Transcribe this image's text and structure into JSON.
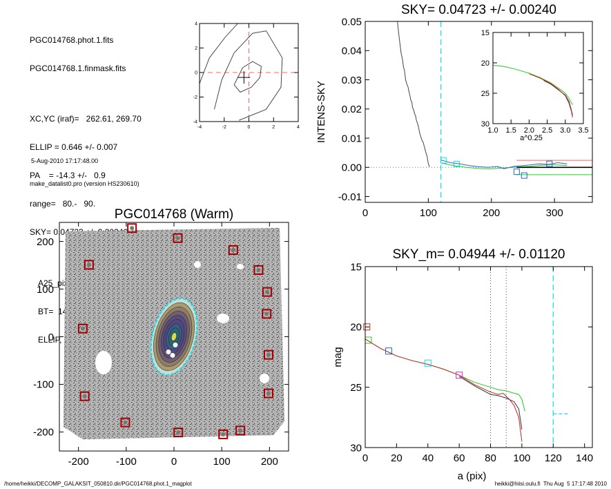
{
  "info": {
    "file1": "PGC014768.phot.1.fits",
    "file2": "PGC014768.1.finmask.fits",
    "xcyc": "XC,YC (iraf)=   262.61, 269.70",
    "ellip": "ELLIP = 0.646 +/- 0.007",
    "pa": "PA    = -14.3 +/-   0.9",
    "range": "range=   80.-   90.",
    "sky": "SKY= 0.04723 +/- 0.00240",
    "a25": "A25_pix= 67.8   T= 7.6  B",
    "bt": "BT=  14.43   MABS=-18.60",
    "ellippa": "ELLIP, PA= 0.651   166.2",
    "date": "5-Aug-2010 17:17:48.00",
    "program": "make_datalist0.pro (version HS230610)"
  },
  "footer": {
    "path": "/home/heikki/DECOMP_GALAKSIT_050810.dir/PGC014768.phot.1_magplot",
    "user": "heikki@hiisi.oulu.fi  Thu Aug  5 17:17:48 2010"
  },
  "colors": {
    "cyan": "#00e5ee",
    "red_dash": "#ff6060",
    "green": "#22cc22",
    "red": "#cc2222",
    "blue": "#2266cc",
    "magenta": "#cc33cc",
    "dark_red_marker": "#a00000"
  },
  "chart_data": [
    {
      "id": "center",
      "type": "contour",
      "title": "",
      "xlim": [
        -4,
        4
      ],
      "ylim": [
        -4,
        4
      ],
      "x_ticks": [
        "-4",
        "-2",
        "0",
        "2",
        "4"
      ],
      "y_ticks": [
        "-4",
        "-2",
        "0",
        "2",
        "4"
      ],
      "crosshair": [
        0,
        0
      ],
      "center_mark": [
        -0.4,
        -0.4
      ],
      "contours": [
        [
          [
            -1.2,
            -1.0
          ],
          [
            -0.5,
            0.4
          ],
          [
            0.3,
            0.9
          ],
          [
            1.0,
            0.5
          ],
          [
            0.9,
            -0.4
          ],
          [
            0.2,
            -1.2
          ],
          [
            -0.7,
            -1.6
          ],
          [
            -1.2,
            -1.0
          ]
        ],
        [
          [
            -2.8,
            -3.0
          ],
          [
            -2.2,
            -0.6
          ],
          [
            -1.2,
            1.6
          ],
          [
            0.3,
            3.2
          ],
          [
            1.4,
            3.4
          ],
          [
            2.7,
            1.2
          ],
          [
            2.6,
            -1.2
          ],
          [
            1.4,
            -3.0
          ],
          [
            -0.8,
            -3.9
          ]
        ],
        [
          [
            -4.0,
            -0.9
          ],
          [
            -3.2,
            1.2
          ],
          [
            -1.9,
            2.9
          ],
          [
            -0.9,
            4.0
          ]
        ]
      ]
    },
    {
      "id": "sky",
      "type": "line",
      "title": "SKY= 0.04723 +/- 0.00240",
      "xlabel": "",
      "ylabel": "INTENS-SKY",
      "xlim": [
        0,
        360
      ],
      "ylim": [
        -0.012,
        0.05
      ],
      "x_ticks": [
        "0",
        "100",
        "200",
        "300"
      ],
      "y_ticks": [
        "-0.01",
        "0.00",
        "0.01",
        "0.02",
        "0.03",
        "0.04",
        "0.05"
      ],
      "vline": 120,
      "profile": [
        [
          51,
          0.05
        ],
        [
          54,
          0.044
        ],
        [
          57,
          0.039
        ],
        [
          59,
          0.037
        ],
        [
          61,
          0.034
        ],
        [
          62,
          0.0335
        ],
        [
          64,
          0.03
        ],
        [
          66,
          0.0285
        ],
        [
          68,
          0.0275
        ],
        [
          69,
          0.0262
        ],
        [
          71,
          0.0245
        ],
        [
          72,
          0.0232
        ],
        [
          74,
          0.0222
        ],
        [
          75,
          0.0205
        ],
        [
          77,
          0.0195
        ],
        [
          78,
          0.0185
        ],
        [
          80,
          0.0175
        ],
        [
          81,
          0.0162
        ],
        [
          83,
          0.015
        ],
        [
          85,
          0.0132
        ],
        [
          86,
          0.012
        ],
        [
          88,
          0.0106
        ],
        [
          90,
          0.0092
        ],
        [
          92,
          0.0085
        ],
        [
          94,
          0.0068
        ],
        [
          96,
          0.0052
        ],
        [
          98,
          0.0038
        ],
        [
          100,
          0.0012
        ],
        [
          102,
          0.0002
        ]
      ],
      "blue_profile": [
        [
          120,
          0.0025
        ],
        [
          135,
          0.0016
        ],
        [
          150,
          0.0012
        ],
        [
          165,
          0.0006
        ],
        [
          180,
          0.0002
        ],
        [
          195,
          0.0
        ],
        [
          210,
          0.0003
        ],
        [
          220,
          -0.0005
        ],
        [
          235,
          0.0003
        ],
        [
          250,
          0.0006
        ],
        [
          260,
          0.0008
        ],
        [
          275,
          0.0012
        ],
        [
          290,
          0.001
        ],
        [
          305,
          0.0016
        ],
        [
          320,
          0.0012
        ]
      ],
      "green_profile": [
        [
          120,
          0.0015
        ],
        [
          140,
          0.0006
        ],
        [
          160,
          0.0
        ],
        [
          180,
          -0.0004
        ],
        [
          200,
          -0.0005
        ],
        [
          220,
          -0.0002
        ],
        [
          240,
          0.0001
        ],
        [
          260,
          0.0003
        ],
        [
          280,
          0.0007
        ],
        [
          300,
          0.0009
        ],
        [
          320,
          0.0006
        ]
      ],
      "markers_cyan": [
        [
          124,
          0.0024
        ],
        [
          145,
          0.0011
        ]
      ],
      "markers_blue": [
        [
          240,
          -0.0015
        ],
        [
          252,
          -0.0028
        ],
        [
          292,
          0.0012
        ]
      ],
      "sky_ref": {
        "x": [
          240,
          360
        ],
        "black": 0.0,
        "red": 0.0024,
        "green": -0.0025
      },
      "inset": {
        "xlabel": "a^0.25",
        "xlim": [
          1.0,
          3.5
        ],
        "ylim": [
          15,
          30
        ],
        "x_ticks": [
          "1.0",
          "1.5",
          "2.0",
          "2.5",
          "3.0",
          "3.5"
        ],
        "y_ticks": [
          "15",
          "20",
          "25",
          "30"
        ],
        "green": [
          [
            1.0,
            20.4
          ],
          [
            1.3,
            20.6
          ],
          [
            1.6,
            21.0
          ],
          [
            2.0,
            21.7
          ],
          [
            2.3,
            22.4
          ],
          [
            2.6,
            23.3
          ],
          [
            2.8,
            24.1
          ],
          [
            3.0,
            25.0
          ],
          [
            3.1,
            25.8
          ],
          [
            3.2,
            26.9
          ]
        ],
        "red": [
          [
            2.0,
            21.8
          ],
          [
            2.3,
            22.5
          ],
          [
            2.6,
            23.4
          ],
          [
            2.8,
            24.3
          ],
          [
            3.0,
            25.4
          ],
          [
            3.1,
            26.6
          ],
          [
            3.17,
            28.0
          ],
          [
            3.2,
            29.0
          ]
        ],
        "black": [
          [
            2.4,
            22.9
          ],
          [
            2.6,
            23.5
          ],
          [
            2.8,
            24.4
          ],
          [
            3.0,
            25.3
          ],
          [
            3.1,
            26.3
          ],
          [
            3.16,
            27.6
          ],
          [
            3.2,
            28.6
          ]
        ]
      }
    },
    {
      "id": "image",
      "type": "image",
      "title": "PGC014768 (Warm)",
      "xlim": [
        -240,
        240
      ],
      "ylim": [
        -240,
        240
      ],
      "x_ticks": [
        "-200",
        "-100",
        "0",
        "100",
        "200"
      ],
      "y_ticks": [
        "-200",
        "-100",
        "0",
        "100",
        "200"
      ],
      "ellipse": {
        "cx": 0,
        "cy": 0,
        "semi_major": 130,
        "semi_minor": 45,
        "angle": -14.3
      },
      "markers": [
        [
          -88,
          228
        ],
        [
          8,
          207
        ],
        [
          124,
          182
        ],
        [
          -178,
          151
        ],
        [
          177,
          140
        ],
        [
          195,
          94
        ],
        [
          194,
          48
        ],
        [
          -191,
          17
        ],
        [
          198,
          -38
        ],
        [
          -187,
          -125
        ],
        [
          198,
          -119
        ],
        [
          -102,
          -180
        ],
        [
          9,
          -201
        ],
        [
          103,
          -205
        ],
        [
          139,
          -197
        ]
      ]
    },
    {
      "id": "mag",
      "type": "line",
      "title": "SKY_m=  0.04944 +/- 0.01120",
      "xlabel": "a (pix)",
      "ylabel": "mag",
      "xlim": [
        0,
        145
      ],
      "ylim": [
        15,
        30
      ],
      "x_ticks": [
        "0",
        "20",
        "40",
        "60",
        "80",
        "100",
        "120",
        "140"
      ],
      "y_ticks": [
        "15",
        "20",
        "25",
        "30"
      ],
      "vlines_dotted": [
        80,
        90
      ],
      "vline_cyan": 120,
      "green": [
        [
          0,
          21.0
        ],
        [
          5,
          21.4
        ],
        [
          10,
          21.8
        ],
        [
          15,
          22.1
        ],
        [
          20,
          22.4
        ],
        [
          30,
          22.8
        ],
        [
          40,
          23.1
        ],
        [
          50,
          23.5
        ],
        [
          60,
          24.0
        ],
        [
          70,
          24.6
        ],
        [
          80,
          25.0
        ],
        [
          85,
          25.2
        ],
        [
          90,
          25.3
        ],
        [
          95,
          25.5
        ],
        [
          98,
          25.6
        ],
        [
          100,
          26.0
        ],
        [
          102,
          27.0
        ]
      ],
      "red": [
        [
          0,
          21.0
        ],
        [
          5,
          21.4
        ],
        [
          10,
          21.8
        ],
        [
          15,
          22.1
        ],
        [
          20,
          22.4
        ],
        [
          30,
          22.8
        ],
        [
          40,
          23.1
        ],
        [
          50,
          23.5
        ],
        [
          60,
          24.0
        ],
        [
          70,
          24.8
        ],
        [
          80,
          25.4
        ],
        [
          85,
          25.6
        ],
        [
          88,
          25.5
        ],
        [
          92,
          26.0
        ],
        [
          95,
          26.5
        ],
        [
          98,
          27.5
        ],
        [
          100,
          29.5
        ]
      ],
      "black": [
        [
          60,
          24.1
        ],
        [
          70,
          24.9
        ],
        [
          80,
          25.6
        ],
        [
          85,
          25.7
        ],
        [
          90,
          25.9
        ],
        [
          95,
          26.2
        ],
        [
          98,
          26.8
        ],
        [
          100,
          28.5
        ]
      ],
      "markers": [
        {
          "x": 1,
          "y": 20.0,
          "color": "red"
        },
        {
          "x": 2,
          "y": 21.1,
          "color": "green"
        },
        {
          "x": 15,
          "y": 22.0,
          "color": "blue"
        },
        {
          "x": 40,
          "y": 23.0,
          "color": "cyan"
        },
        {
          "x": 60,
          "y": 24.0,
          "color": "magenta"
        }
      ],
      "sky_dash": {
        "x": [
          120,
          130
        ],
        "y": 27.2
      }
    }
  ]
}
